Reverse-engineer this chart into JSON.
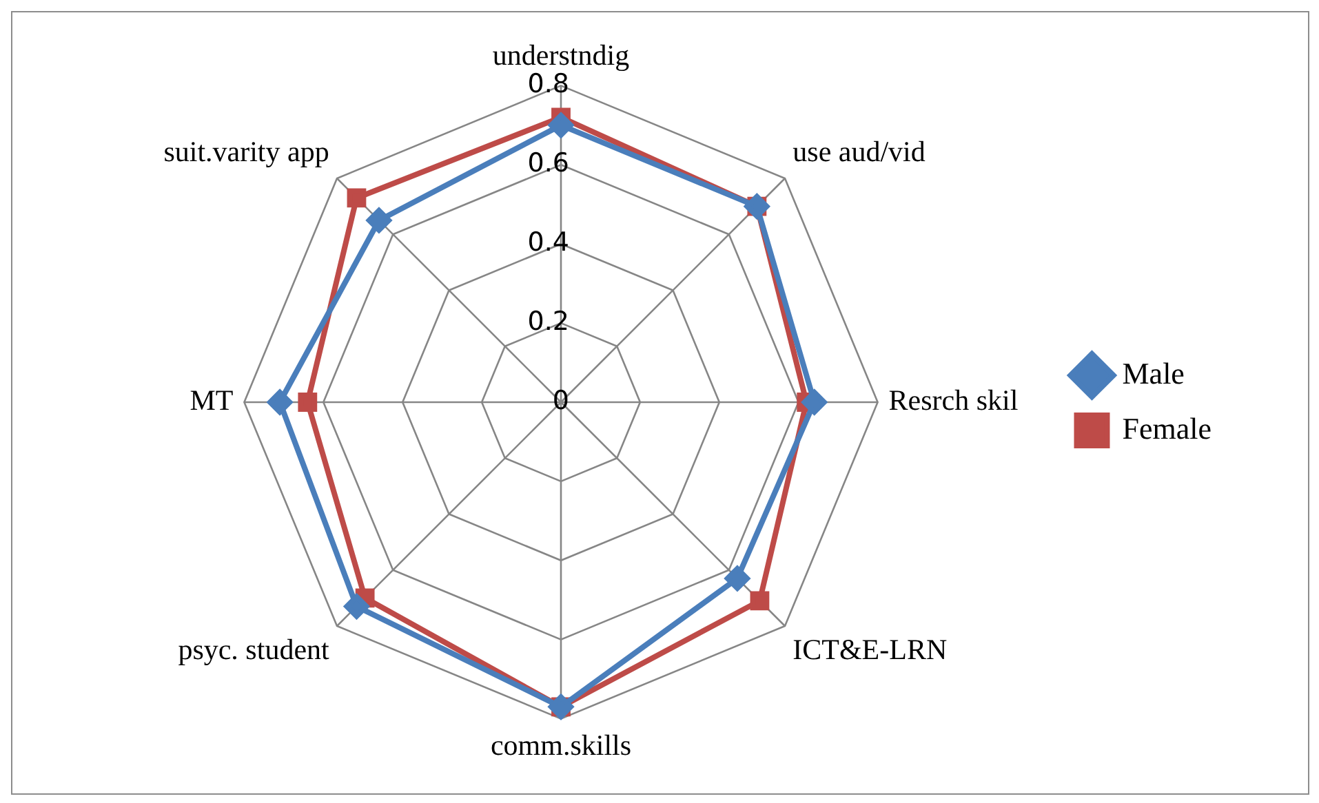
{
  "chart_data": {
    "type": "radar",
    "categories": [
      "understndig",
      "use aud/vid",
      "Resrch skil",
      "ICT&E-LRN",
      "comm.skills",
      "psyc. student",
      "MT",
      "suit.varity app"
    ],
    "series": [
      {
        "name": "Male",
        "color": "#4a7ebb",
        "marker": "diamond",
        "values": [
          0.7,
          0.7,
          0.64,
          0.63,
          0.77,
          0.73,
          0.71,
          0.65
        ]
      },
      {
        "name": "Female",
        "color": "#be4b48",
        "marker": "square",
        "values": [
          0.72,
          0.7,
          0.62,
          0.71,
          0.77,
          0.7,
          0.64,
          0.73
        ]
      }
    ],
    "ylim": [
      0,
      0.8
    ],
    "yticks": [
      0,
      0.2,
      0.4,
      0.6,
      0.8
    ],
    "grid": true,
    "legend": "right"
  }
}
